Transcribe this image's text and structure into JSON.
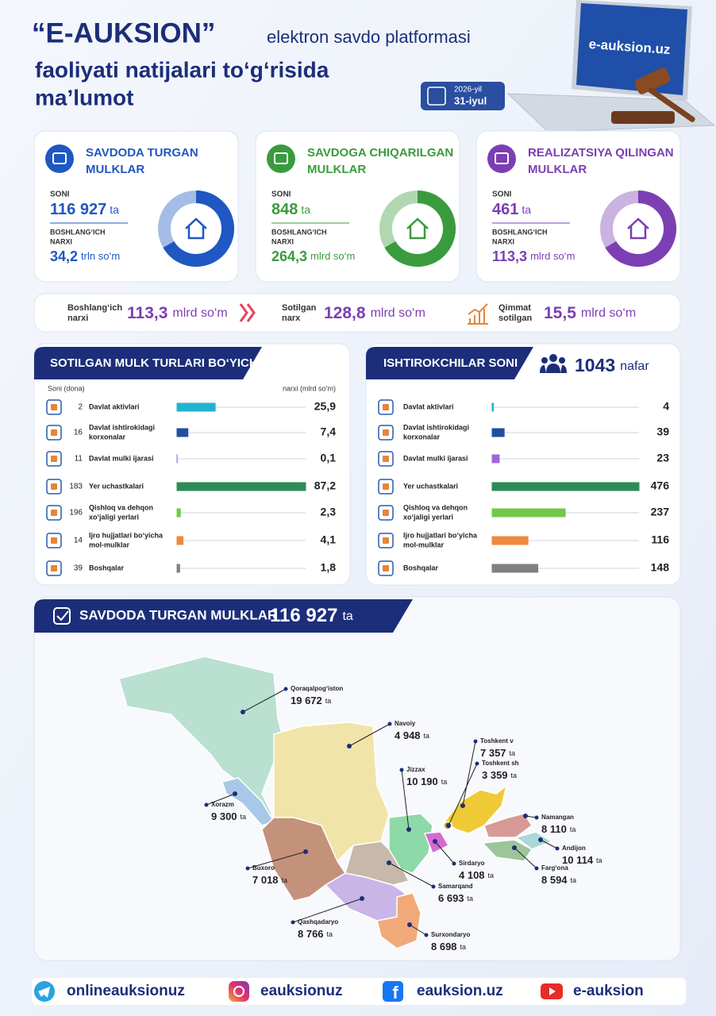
{
  "header": {
    "title": "“E-AUKSION”",
    "subtitle": "elektron savdo platformasi",
    "line2": "faoliyati natijalari to‘g‘risida",
    "line3": "ma’lumot",
    "date_year": "2026-yil",
    "date_day": "31-iyul",
    "site": "e-auksion.uz"
  },
  "cards": [
    {
      "title_1": "SAVDODA TURGAN",
      "title_2": "MULKLAR",
      "count_label": "SONI",
      "count": "116 927",
      "count_unit": "ta",
      "price_label_1": "BOSHLANG‘ICH",
      "price_label_2": "NARXI",
      "price": "34,2",
      "price_unit": "trln so‘m",
      "color": "#1f57c3"
    },
    {
      "title_1": "SAVDOGA CHIQARILGAN",
      "title_2": "MULKLAR",
      "count_label": "SONI",
      "count": "848",
      "count_unit": "ta",
      "price_label_1": "BOSHLANG‘ICH",
      "price_label_2": "NARXI",
      "price": "264,3",
      "price_unit": "mlrd so‘m",
      "color": "#3a9b3e"
    },
    {
      "title_1": "REALIZATSIYA QILINGAN",
      "title_2": "MULKLAR",
      "count_label": "SONI",
      "count": "461",
      "count_unit": "ta",
      "price_label_1": "BOSHLANG‘ICH",
      "price_label_2": "NARXI",
      "price": "113,3",
      "price_unit": "mlrd so‘m",
      "color": "#7b3fb3"
    }
  ],
  "summary": [
    {
      "label_1": "Boshlang‘ich",
      "label_2": "narxi",
      "value": "113,3",
      "unit": "mlrd so‘m"
    },
    {
      "label_1": "Sotilgan",
      "label_2": "narx",
      "value": "128,8",
      "unit": "mlrd so‘m"
    },
    {
      "label_1": "Qimmat",
      "label_2": "sotilgan",
      "value": "15,5",
      "unit": "mlrd so‘m"
    }
  ],
  "sold_by_type": {
    "title": "SOTILGAN MULK TURLARI BO‘YICHA",
    "count_header": "Soni (dona)",
    "price_header": "narxi (mlrd so‘m)",
    "rows": [
      {
        "name_1": "Davlat aktivlari",
        "count": 2,
        "value": 25.9,
        "value_label": "25,9",
        "color": "#1fb4cf"
      },
      {
        "name_1": "Davlat ishtirokidagi",
        "name_2": "korxonalar",
        "count": 16,
        "value": 7.4,
        "value_label": "7,4",
        "color": "#1f4f9f"
      },
      {
        "name_1": "Davlat mulki ijarasi",
        "count": 11,
        "value": 0.1,
        "value_label": "0,1",
        "color": "#a066d8"
      },
      {
        "name_1": "Yer uchastkalari",
        "count": 183,
        "value": 87.2,
        "value_label": "87,2",
        "color": "#2e8b57"
      },
      {
        "name_1": "Qishloq va dehqon",
        "name_2": "xo‘jaligi yerlari",
        "count": 196,
        "value": 2.3,
        "value_label": "2,3",
        "color": "#72c84a"
      },
      {
        "name_1": "Ijro hujjatlari bo‘yicha",
        "name_2": "mol-mulklar",
        "count": 14,
        "value": 4.1,
        "value_label": "4,1",
        "color": "#f0883e"
      },
      {
        "name_1": "Boshqalar",
        "count": 39,
        "value": 1.8,
        "value_label": "1,8",
        "color": "#808080"
      }
    ]
  },
  "participants": {
    "title": "ISHTIROKCHILAR SONI",
    "total": "1043",
    "unit": "nafar",
    "rows": [
      {
        "name_1": "Davlat aktivlari",
        "value": 4,
        "color": "#1fb4cf"
      },
      {
        "name_1": "Davlat ishtirokidagi",
        "name_2": "korxonalar",
        "value": 39,
        "color": "#1f4f9f"
      },
      {
        "name_1": "Davlat mulki ijarasi",
        "value": 23,
        "color": "#a066d8"
      },
      {
        "name_1": "Yer uchastkalari",
        "value": 476,
        "color": "#2e8b57"
      },
      {
        "name_1": "Qishloq va dehqon",
        "name_2": "xo‘jaligi yerlari",
        "value": 237,
        "color": "#72c84a"
      },
      {
        "name_1": "Ijro hujjatlari bo‘yicha",
        "name_2": "mol-mulklar",
        "value": 116,
        "color": "#f0883e"
      },
      {
        "name_1": "Boshqalar",
        "value": 148,
        "color": "#808080"
      }
    ]
  },
  "map": {
    "title": "SAVDODA TURGAN MULKLAR",
    "total": "116 927",
    "unit": "ta",
    "regions": [
      {
        "name": "Qoraqalpog‘iston",
        "value": "19 672",
        "unit": "ta"
      },
      {
        "name": "Navoiy",
        "value": "4 948",
        "unit": "ta"
      },
      {
        "name": "Toshkent v",
        "value": "7 357",
        "unit": "ta"
      },
      {
        "name": "Toshkent sh",
        "value": "3 359",
        "unit": "ta"
      },
      {
        "name": "Jizzax",
        "value": "10 190",
        "unit": "ta"
      },
      {
        "name": "Xorazm",
        "value": "9 300",
        "unit": "ta"
      },
      {
        "name": "Namangan",
        "value": "8 110",
        "unit": "ta"
      },
      {
        "name": "Andijon",
        "value": "10 114",
        "unit": "ta"
      },
      {
        "name": "Farg‘ona",
        "value": "8 594",
        "unit": "ta"
      },
      {
        "name": "Sirdaryo",
        "value": "4 108",
        "unit": "ta"
      },
      {
        "name": "Buxoro",
        "value": "7 018",
        "unit": "ta"
      },
      {
        "name": "Samarqand",
        "value": "6 693",
        "unit": "ta"
      },
      {
        "name": "Qashqadaryo",
        "value": "8 766",
        "unit": "ta"
      },
      {
        "name": "Surxondaryo",
        "value": "8 698",
        "unit": "ta"
      }
    ]
  },
  "footer": [
    "onlineauksionuz",
    "eauksionuz",
    "eauksion.uz",
    "e-auksion"
  ]
}
